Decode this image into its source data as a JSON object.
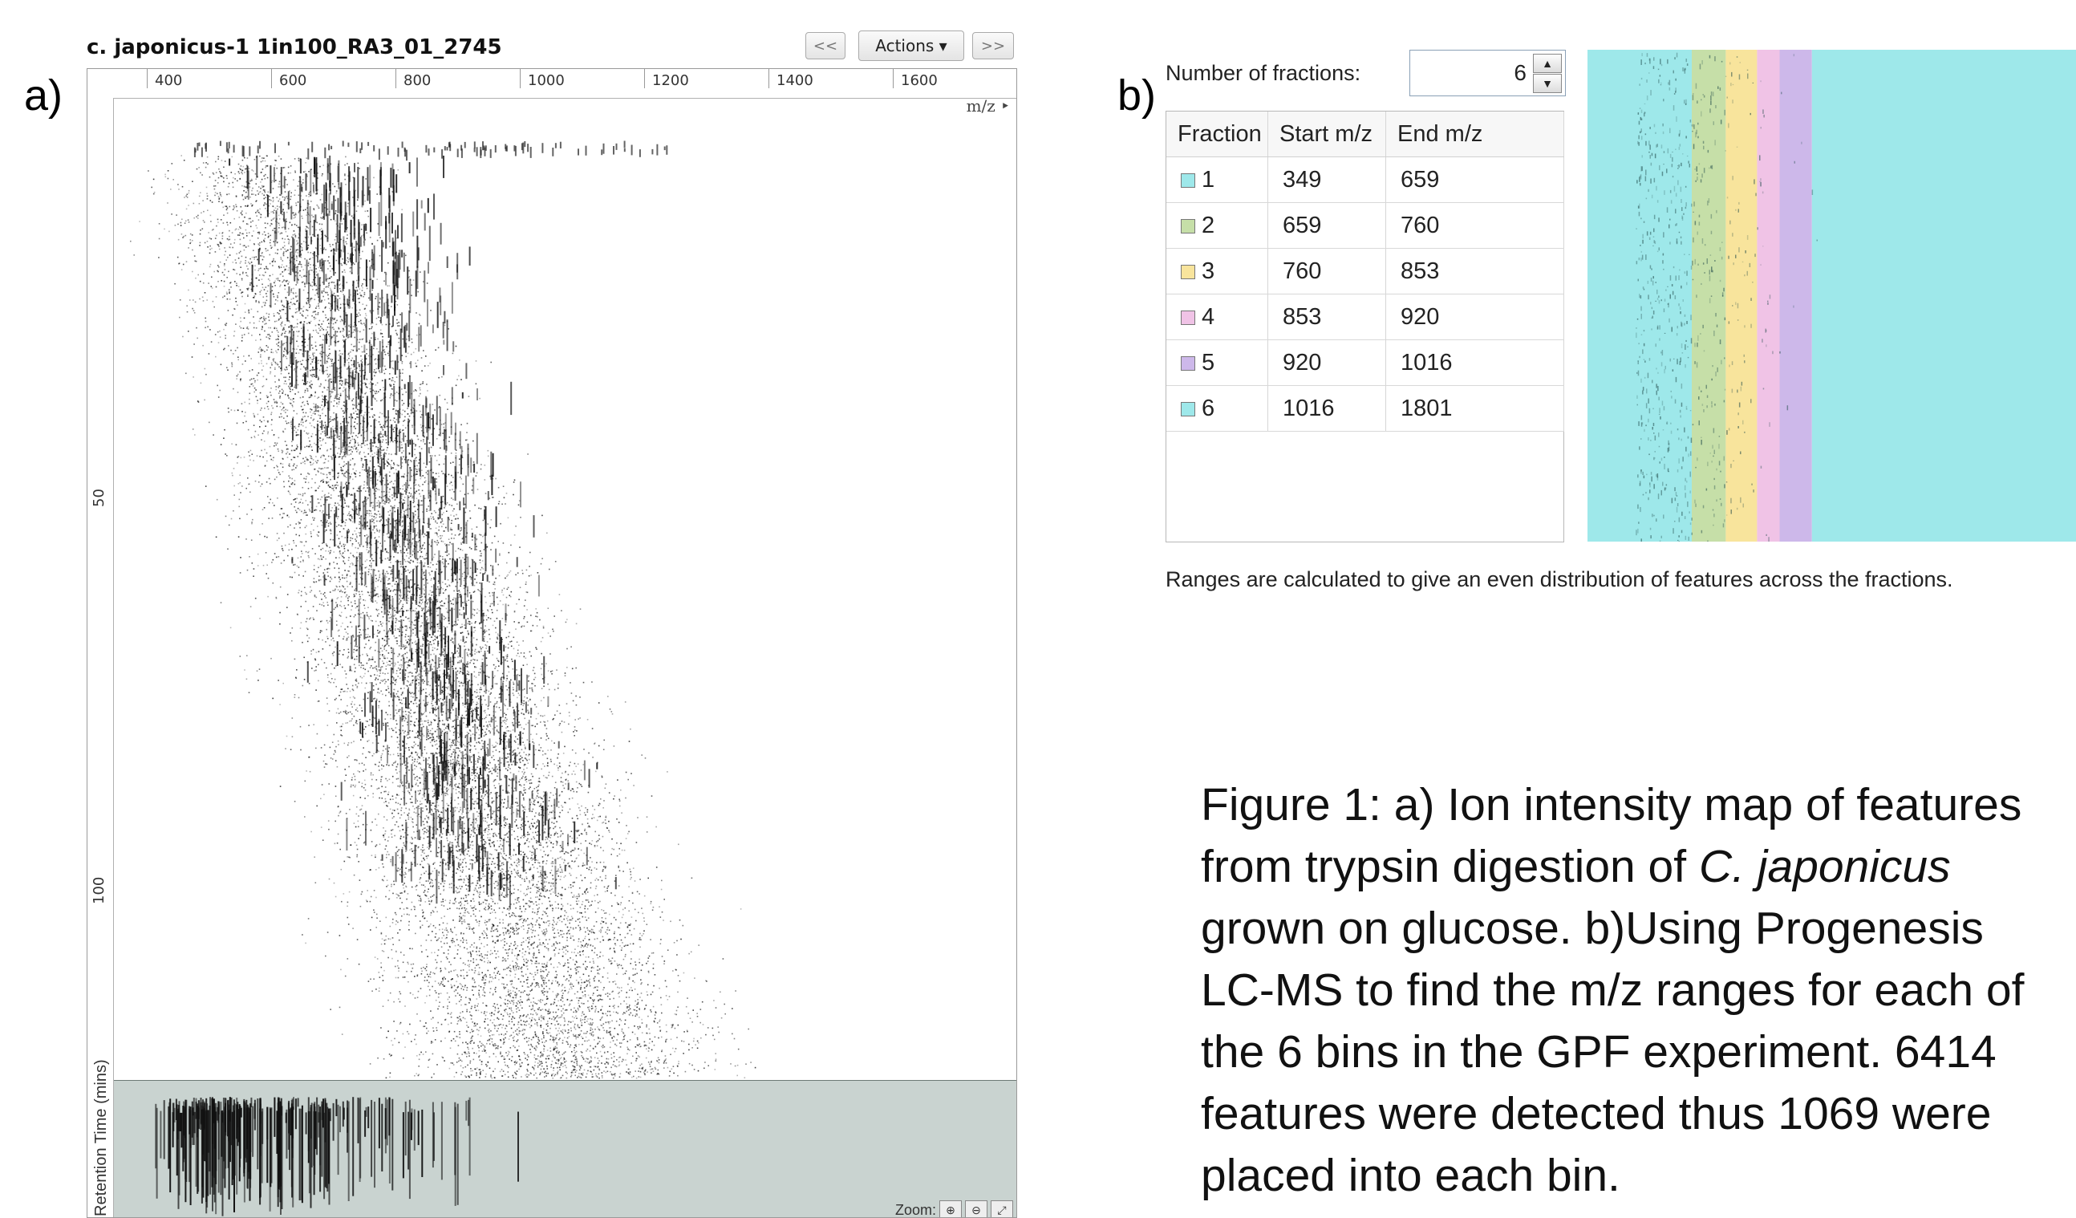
{
  "panel_a": {
    "letter": "a)",
    "title": "c. japonicus-1  1in100_RA3_01_2745",
    "nav_prev_label": "<<",
    "actions_label": "Actions ▾",
    "nav_next_label": ">>",
    "x_ticks": [
      "400",
      "600",
      "800",
      "1000",
      "1200",
      "1400",
      "1600"
    ],
    "x_unit": "m/z ‣",
    "y_ticks": [
      "50",
      "100"
    ],
    "y_axis_label": "Retention Time (mins)",
    "zoom_label": "Zoom:",
    "colors": {
      "overview_bg": "#c9d3d0",
      "peak": "#111111"
    }
  },
  "panel_b": {
    "letter": "b)",
    "fractions_label": "Number of fractions:",
    "fractions_value": "6",
    "columns": [
      "Fraction",
      "Start m/z",
      "End m/z"
    ],
    "rows": [
      {
        "fraction": "1",
        "start": "349",
        "end": "659",
        "color": "#9ee8ea"
      },
      {
        "fraction": "2",
        "start": "659",
        "end": "760",
        "color": "#c6dfa8"
      },
      {
        "fraction": "3",
        "start": "760",
        "end": "853",
        "color": "#f8e49c"
      },
      {
        "fraction": "4",
        "start": "853",
        "end": "920",
        "color": "#f0c3e6"
      },
      {
        "fraction": "5",
        "start": "920",
        "end": "1016",
        "color": "#cdb8ea"
      },
      {
        "fraction": "6",
        "start": "1016",
        "end": "1801",
        "color": "#9ee8ea"
      }
    ],
    "note": "Ranges are calculated to give an even distribution of features across the fractions."
  },
  "caption": {
    "part1": "Figure 1: a) Ion intensity map of features from trypsin digestion of ",
    "species": "C. japonicus",
    "part2": " grown on glucose. b)Using Progenesis LC-MS to find the m/z ranges for each of the 6 bins in the GPF experiment. 6414 features were detected thus 1069 were placed into each bin."
  }
}
